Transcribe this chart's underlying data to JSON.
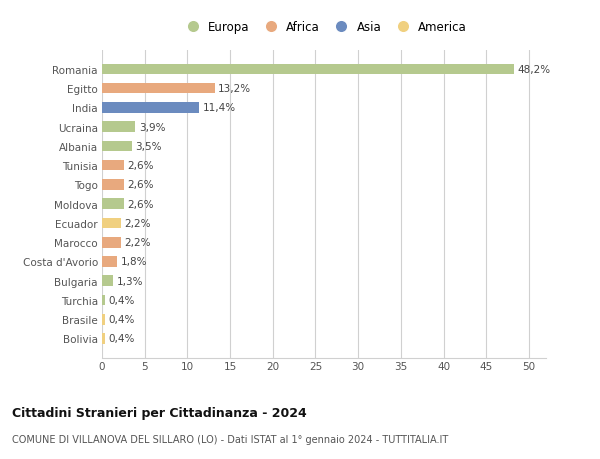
{
  "categories": [
    "Romania",
    "Egitto",
    "India",
    "Ucraina",
    "Albania",
    "Tunisia",
    "Togo",
    "Moldova",
    "Ecuador",
    "Marocco",
    "Costa d'Avorio",
    "Bulgaria",
    "Turchia",
    "Brasile",
    "Bolivia"
  ],
  "values": [
    48.2,
    13.2,
    11.4,
    3.9,
    3.5,
    2.6,
    2.6,
    2.6,
    2.2,
    2.2,
    1.8,
    1.3,
    0.4,
    0.4,
    0.4
  ],
  "labels": [
    "48,2%",
    "13,2%",
    "11,4%",
    "3,9%",
    "3,5%",
    "2,6%",
    "2,6%",
    "2,6%",
    "2,2%",
    "2,2%",
    "1,8%",
    "1,3%",
    "0,4%",
    "0,4%",
    "0,4%"
  ],
  "colors": [
    "#b5c98e",
    "#e8a97e",
    "#6b8bbf",
    "#b5c98e",
    "#b5c98e",
    "#e8a97e",
    "#e8a97e",
    "#b5c98e",
    "#f0d080",
    "#e8a97e",
    "#e8a97e",
    "#b5c98e",
    "#b5c98e",
    "#f0d080",
    "#f0d080"
  ],
  "legend": {
    "Europa": "#b5c98e",
    "Africa": "#e8a97e",
    "Asia": "#6b8bbf",
    "America": "#f0d080"
  },
  "xlim": [
    0,
    52
  ],
  "xticks": [
    0,
    5,
    10,
    15,
    20,
    25,
    30,
    35,
    40,
    45,
    50
  ],
  "title_bold": "Cittadini Stranieri per Cittadinanza - 2024",
  "subtitle": "COMUNE DI VILLANOVA DEL SILLARO (LO) - Dati ISTAT al 1° gennaio 2024 - TUTTITALIA.IT",
  "background_color": "#ffffff",
  "grid_color": "#d0d0d0",
  "bar_height": 0.55,
  "label_fontsize": 7.5,
  "tick_fontsize": 7.5,
  "ytick_fontsize": 7.5
}
